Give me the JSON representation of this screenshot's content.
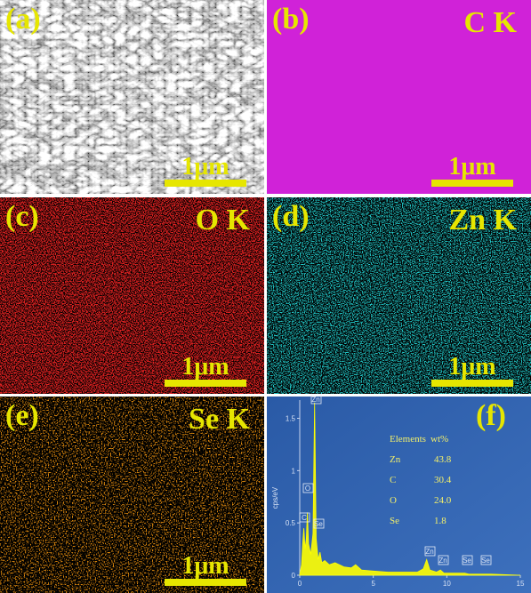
{
  "panels": [
    {
      "label": "(a)",
      "scale_bar": "1μm"
    },
    {
      "label": "(b)",
      "element": "C K",
      "scale_bar": "1μm"
    },
    {
      "label": "(c)",
      "element": "O K",
      "scale_bar": "1μm"
    },
    {
      "label": "(d)",
      "element": "Zn K",
      "scale_bar": "1μm"
    },
    {
      "label": "(e)",
      "element": "Se K",
      "scale_bar": "1μm"
    },
    {
      "label": "(f)"
    }
  ],
  "chart_data": {
    "type": "area",
    "y_label": "cps/eV",
    "x": [
      0,
      0.12,
      0.2,
      0.28,
      0.36,
      0.45,
      0.52,
      0.6,
      0.75,
      0.9,
      1.01,
      1.12,
      1.25,
      1.38,
      1.5,
      1.7,
      2.0,
      2.4,
      3.0,
      3.5,
      3.8,
      4.2,
      5,
      6,
      7,
      8,
      8.4,
      8.63,
      8.85,
      9.3,
      9.57,
      9.8,
      10.5,
      11.22,
      11.5,
      12.5,
      13,
      15
    ],
    "series": [
      {
        "color": "#ffff00",
        "values": [
          0,
          0.1,
          0.3,
          0.45,
          0.25,
          0.35,
          0.6,
          0.3,
          0.2,
          0.4,
          1.65,
          0.35,
          0.15,
          0.22,
          0.12,
          0.14,
          0.1,
          0.12,
          0.08,
          0.07,
          0.1,
          0.05,
          0.04,
          0.03,
          0.03,
          0.03,
          0.06,
          0.15,
          0.05,
          0.03,
          0.05,
          0.02,
          0.02,
          0.02,
          0.01,
          0.01,
          0.01,
          0
        ]
      }
    ],
    "xlim": [
      0,
      15
    ],
    "xticks": [
      0,
      5,
      10,
      15
    ],
    "ylim": [
      0,
      1.7
    ],
    "yticks": [
      0,
      0.5,
      1,
      1.5
    ],
    "peak_labels": [
      "C",
      "O",
      "Zn",
      "Se",
      "Zn",
      "Zn",
      "Se",
      "Se"
    ],
    "table": {
      "header": [
        "Elements",
        "wt%"
      ],
      "rows": [
        [
          "Zn",
          "43.8"
        ],
        [
          "C",
          "30.4"
        ],
        [
          "O",
          "24.0"
        ],
        [
          "Se",
          "1.8"
        ]
      ]
    }
  }
}
